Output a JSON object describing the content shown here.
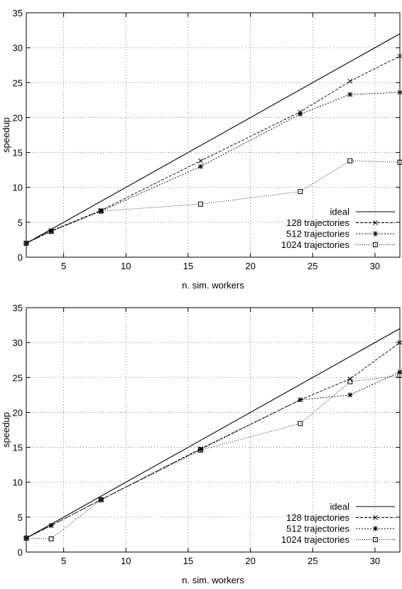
{
  "chart_data": [
    {
      "type": "line",
      "title": "",
      "xlabel": "n. sim. workers",
      "ylabel": "speedup",
      "xlim": [
        2,
        32
      ],
      "ylim": [
        0,
        35
      ],
      "xticks": [
        5,
        10,
        15,
        20,
        25,
        30
      ],
      "yticks": [
        0,
        5,
        10,
        15,
        20,
        25,
        30,
        35
      ],
      "grid": true,
      "legend_position": "bottom-right",
      "series": [
        {
          "name": "ideal",
          "marker": "none",
          "dash": "none",
          "x": [
            2,
            32
          ],
          "y": [
            2,
            32
          ]
        },
        {
          "name": "128 trajectories",
          "marker": "x",
          "dash": "4,2",
          "x": [
            2,
            4,
            8,
            16,
            24,
            28,
            32
          ],
          "y": [
            2,
            3.8,
            6.7,
            13.8,
            20.8,
            25.2,
            28.8
          ]
        },
        {
          "name": "512 trajectories",
          "marker": "star",
          "dash": "2,2",
          "x": [
            2,
            4,
            8,
            16,
            24,
            28,
            32
          ],
          "y": [
            2,
            3.7,
            6.6,
            13.0,
            20.5,
            23.3,
            23.6
          ]
        },
        {
          "name": "1024 trajectories",
          "marker": "square",
          "dash": "1,2",
          "x": [
            2,
            4,
            8,
            16,
            24,
            28,
            32
          ],
          "y": [
            2,
            3.7,
            6.6,
            7.6,
            9.4,
            13.8,
            13.6
          ]
        }
      ]
    },
    {
      "type": "line",
      "title": "",
      "xlabel": "n. sim. workers",
      "ylabel": "speedup",
      "xlim": [
        2,
        32
      ],
      "ylim": [
        0,
        35
      ],
      "xticks": [
        5,
        10,
        15,
        20,
        25,
        30
      ],
      "yticks": [
        0,
        5,
        10,
        15,
        20,
        25,
        30,
        35
      ],
      "grid": true,
      "legend_position": "bottom-right",
      "series": [
        {
          "name": "ideal",
          "marker": "none",
          "dash": "none",
          "x": [
            2,
            32
          ],
          "y": [
            2,
            32
          ]
        },
        {
          "name": "128 trajectories",
          "marker": "x",
          "dash": "4,2",
          "x": [
            2,
            4,
            8,
            16,
            24,
            28,
            32
          ],
          "y": [
            2,
            3.8,
            7.5,
            14.8,
            21.8,
            24.8,
            30.0
          ]
        },
        {
          "name": "512 trajectories",
          "marker": "star",
          "dash": "2,2",
          "x": [
            2,
            4,
            8,
            16,
            24,
            28,
            32
          ],
          "y": [
            2,
            3.8,
            7.5,
            14.7,
            21.8,
            22.5,
            25.8
          ]
        },
        {
          "name": "1024 trajectories",
          "marker": "square",
          "dash": "1,2",
          "x": [
            2,
            4,
            8,
            16,
            24,
            28,
            32
          ],
          "y": [
            2,
            1.9,
            7.5,
            14.6,
            18.4,
            24.4,
            25.3
          ]
        }
      ]
    }
  ]
}
